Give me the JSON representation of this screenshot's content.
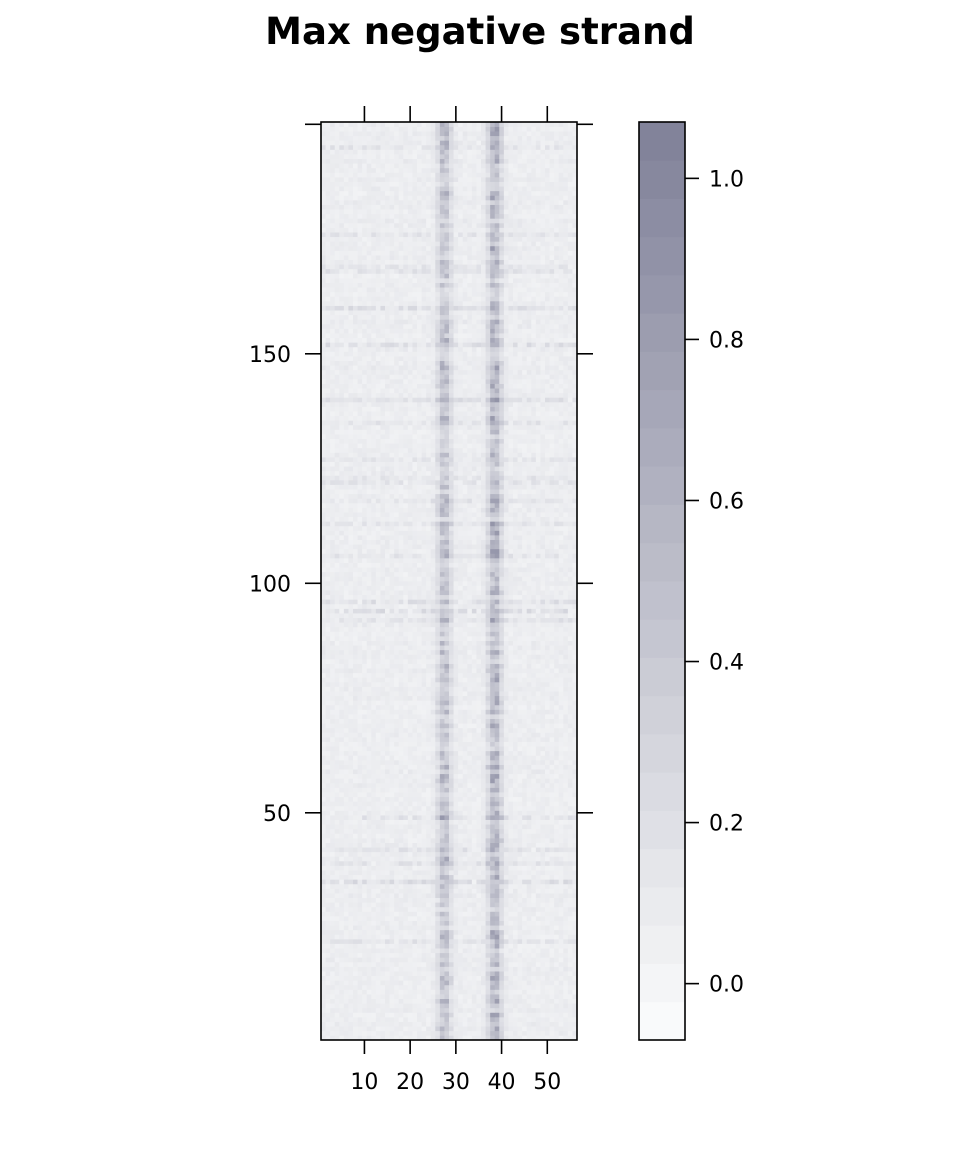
{
  "chart_data": {
    "type": "heatmap",
    "title": "Max negative strand",
    "xlabel": "",
    "ylabel": "",
    "x_range": [
      1,
      56
    ],
    "y_range": [
      1,
      200
    ],
    "x_ticks": [
      10,
      20,
      30,
      40,
      50
    ],
    "y_ticks": [
      50,
      100,
      150
    ],
    "grid": false,
    "colorbar": {
      "placement": "right",
      "range": [
        -0.07,
        1.07
      ],
      "ticks": [
        0.0,
        0.2,
        0.4,
        0.6,
        0.8,
        1.0
      ],
      "tick_labels": [
        "0.0",
        "0.2",
        "0.4",
        "0.6",
        "0.8",
        "1.0"
      ],
      "color_low": "#fcfdfd",
      "color_high": "#7f8098"
    },
    "pattern": {
      "n_columns": 56,
      "n_rows": 200,
      "baseline_value": 0.08,
      "hot_columns": [
        {
          "center": 27.5,
          "peak_value": 0.6
        },
        {
          "center": 38.5,
          "peak_value": 0.75
        }
      ],
      "hot_column_range_y": [
        1,
        200
      ]
    }
  }
}
